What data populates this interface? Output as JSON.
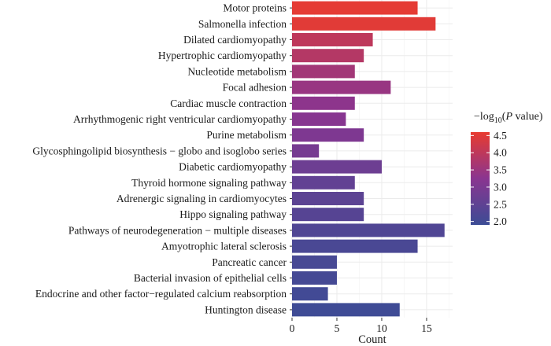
{
  "chart_data": {
    "type": "bar",
    "orientation": "horizontal",
    "categories": [
      "Motor proteins",
      "Salmonella infection",
      "Dilated cardiomyopathy",
      "Hypertrophic cardiomyopathy",
      "Nucleotide metabolism",
      "Focal adhesion",
      "Cardiac muscle contraction",
      "Arrhythmogenic right ventricular cardiomyopathy",
      "Purine metabolism",
      "Glycosphingolipid biosynthesis − globo and isoglobo series",
      "Diabetic cardiomyopathy",
      "Thyroid hormone signaling pathway",
      "Adrenergic signaling in cardiomyocytes",
      "Hippo signaling pathway",
      "Pathways of neurodegeneration − multiple diseases",
      "Amyotrophic lateral sclerosis",
      "Pancreatic cancer",
      "Bacterial invasion of epithelial cells",
      "Endocrine and other factor−regulated calcium reabsorption",
      "Huntington disease"
    ],
    "values": [
      14,
      16,
      9,
      8,
      7,
      11,
      7,
      6,
      8,
      3,
      10,
      7,
      8,
      8,
      17,
      14,
      5,
      5,
      4,
      12
    ],
    "color_values": [
      4.55,
      4.5,
      4.0,
      3.85,
      3.6,
      3.45,
      3.3,
      3.2,
      3.05,
      2.9,
      2.75,
      2.55,
      2.45,
      2.35,
      2.25,
      2.15,
      2.1,
      2.05,
      2.0,
      1.95
    ],
    "xlabel": "Count",
    "ylabel": "",
    "xlim": [
      0,
      17.9
    ],
    "xticks": [
      0,
      5,
      10,
      15
    ],
    "grid": true,
    "legend": {
      "title_prefix": "−log",
      "title_sub": "10",
      "title_open": "(",
      "title_italic": "P",
      "title_suffix": " value)",
      "ticks": [
        "4.5",
        "4.0",
        "3.5",
        "3.0",
        "2.5",
        "2.0"
      ],
      "tick_values": [
        4.5,
        4.0,
        3.5,
        3.0,
        2.5,
        2.0
      ],
      "range": [
        1.9,
        4.6
      ],
      "placement": "right",
      "color_low": "#3c4c95",
      "color_mid": "#8a3590",
      "color_high": "#e83b30"
    }
  }
}
